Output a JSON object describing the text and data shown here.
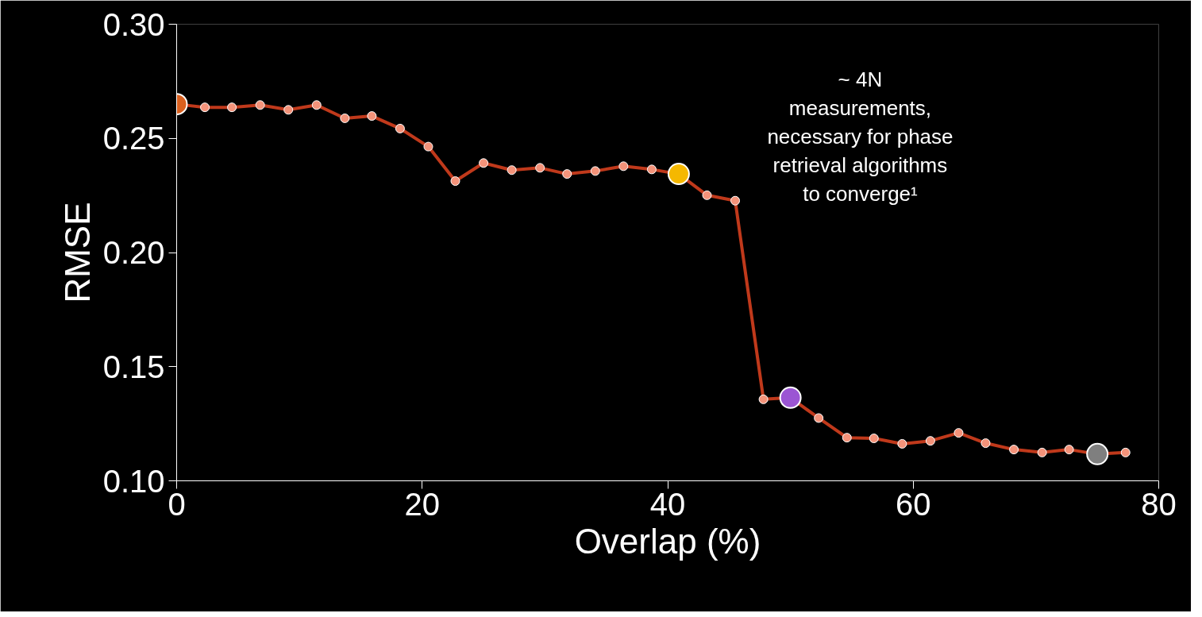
{
  "chart_data": {
    "type": "line",
    "xlabel": "Overlap (%)",
    "ylabel": "RMSE",
    "xlim": [
      0,
      80
    ],
    "xticks": [
      0,
      20,
      40,
      60,
      80
    ],
    "ylim": [
      0.1,
      0.3
    ],
    "yticks": [
      {
        "value": 0.1,
        "label": "0.10"
      },
      0.15,
      {
        "value": 0.2,
        "label": "0.20"
      },
      0.25,
      {
        "value": 0.3,
        "label": "0.30"
      }
    ],
    "grid": false,
    "marker": "circle",
    "line_style": "solid",
    "annotations": [
      "~ 4N\nmeasurements,\nnecessary for phase\nretrieval algorithms\nto converge¹"
    ],
    "series": [
      {
        "color": "#c0391b",
        "x": [
          0,
          2.3,
          4.5,
          6.8,
          9.1,
          11.4,
          13.7,
          15.9,
          18.2,
          20.5,
          22.7,
          25.0,
          27.3,
          29.6,
          31.8,
          34.1,
          36.4,
          38.7,
          40.9,
          43.2,
          45.5,
          47.8,
          50.0,
          52.3,
          54.6,
          56.8,
          59.1,
          61.4,
          63.7,
          65.9,
          68.2,
          70.5,
          72.7,
          75.0,
          77.3
        ],
        "values": [
          0.265,
          0.2636,
          0.2636,
          0.2646,
          0.2625,
          0.2646,
          0.2588,
          0.2598,
          0.2543,
          0.2464,
          0.2313,
          0.2392,
          0.2361,
          0.2371,
          0.2344,
          0.2357,
          0.2378,
          0.2364,
          0.2344,
          0.2251,
          0.2227,
          0.1357,
          0.1364,
          0.1275,
          0.1189,
          0.1186,
          0.1162,
          0.1175,
          0.121,
          0.1165,
          0.1137,
          0.1124,
          0.1137,
          0.1117,
          0.1124
        ]
      },
      {
        "type": "scatter",
        "x": [
          0,
          40.9,
          50.0,
          75.0
        ],
        "values": [
          0.265,
          0.2344,
          0.1364,
          0.1117
        ],
        "colors": [
          "#d9601f",
          "#f5b800",
          "#9b55d3",
          "#7f7f7f"
        ]
      }
    ]
  }
}
